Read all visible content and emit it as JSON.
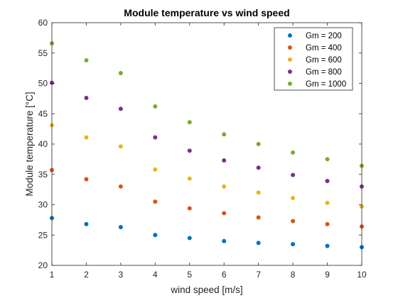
{
  "chart_data": {
    "type": "scatter",
    "title": "Module temperature vs wind speed",
    "xlabel": "wind speed [m/s]",
    "ylabel": "Module temperature [°C]",
    "xlim": [
      1,
      10
    ],
    "ylim": [
      20,
      60
    ],
    "xticks": [
      1,
      2,
      3,
      4,
      5,
      6,
      7,
      8,
      9,
      10
    ],
    "yticks": [
      20,
      25,
      30,
      35,
      40,
      45,
      50,
      55,
      60
    ],
    "grid": false,
    "legend_position": "top-right",
    "x": [
      1,
      2,
      3,
      4,
      5,
      6,
      7,
      8,
      9,
      10
    ],
    "series": [
      {
        "name": "Gm = 200",
        "color": "#0072BD",
        "values": [
          27.8,
          26.8,
          26.3,
          25.0,
          24.5,
          24.0,
          23.7,
          23.5,
          23.2,
          23.0
        ]
      },
      {
        "name": "Gm = 400",
        "color": "#D95319",
        "values": [
          35.7,
          34.2,
          33.0,
          30.5,
          29.4,
          28.6,
          27.9,
          27.3,
          26.8,
          26.4
        ]
      },
      {
        "name": "Gm = 600",
        "color": "#EDB120",
        "values": [
          43.1,
          41.1,
          39.6,
          35.8,
          34.3,
          33.0,
          32.0,
          31.1,
          30.3,
          29.7
        ]
      },
      {
        "name": "Gm = 800",
        "color": "#7E2F8E",
        "values": [
          50.1,
          47.6,
          45.8,
          41.1,
          38.9,
          37.3,
          36.1,
          34.9,
          33.9,
          33.0
        ]
      },
      {
        "name": "Gm = 1000",
        "color": "#77AC30",
        "values": [
          56.6,
          53.8,
          51.7,
          46.2,
          43.6,
          41.6,
          40.0,
          38.6,
          37.5,
          36.4
        ]
      }
    ]
  }
}
